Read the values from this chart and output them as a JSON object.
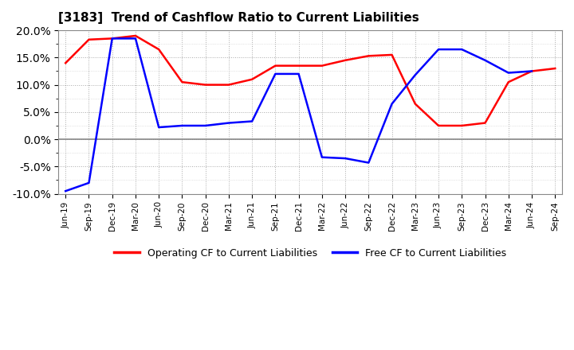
{
  "title": "[3183]  Trend of Cashflow Ratio to Current Liabilities",
  "x_labels": [
    "Jun-19",
    "Sep-19",
    "Dec-19",
    "Mar-20",
    "Jun-20",
    "Sep-20",
    "Dec-20",
    "Mar-21",
    "Jun-21",
    "Sep-21",
    "Dec-21",
    "Mar-22",
    "Jun-22",
    "Sep-22",
    "Dec-22",
    "Mar-23",
    "Jun-23",
    "Sep-23",
    "Dec-23",
    "Mar-24",
    "Jun-24",
    "Sep-24"
  ],
  "operating_cf": [
    14.0,
    18.3,
    18.5,
    19.0,
    16.5,
    10.5,
    10.0,
    10.0,
    11.0,
    13.5,
    13.5,
    13.5,
    14.5,
    15.3,
    15.5,
    6.5,
    2.5,
    2.5,
    3.0,
    10.5,
    12.5,
    13.0
  ],
  "free_cf": [
    -9.5,
    -8.0,
    18.5,
    18.5,
    2.2,
    2.5,
    2.5,
    3.0,
    3.3,
    12.0,
    12.0,
    -3.3,
    -3.5,
    -4.3,
    6.5,
    11.8,
    16.5,
    16.5,
    14.5,
    12.2,
    12.5,
    null
  ],
  "ylim": [
    -10.0,
    20.0
  ],
  "yticks": [
    -10.0,
    -5.0,
    0.0,
    5.0,
    10.0,
    15.0,
    20.0
  ],
  "operating_color": "#FF0000",
  "free_color": "#0000FF",
  "bg_color": "#FFFFFF",
  "plot_bg_color": "#FFFFFF",
  "legend_labels": [
    "Operating CF to Current Liabilities",
    "Free CF to Current Liabilities"
  ]
}
